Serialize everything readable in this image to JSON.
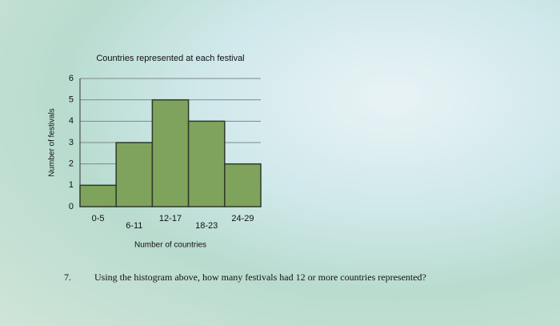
{
  "chart_data": {
    "type": "bar",
    "title": "Countries represented at each festival",
    "x_label": "Number of countries",
    "y_label": "Number of festivals",
    "categories": [
      "0-5",
      "6-11",
      "12-17",
      "18-23",
      "24-29"
    ],
    "values": [
      1,
      3,
      5,
      4,
      2
    ],
    "color": "#7fa35c",
    "ylim": [
      0,
      6
    ],
    "yticks": [
      0,
      1,
      2,
      3,
      4,
      5,
      6
    ],
    "grid": true
  },
  "question": {
    "number": "7.",
    "text": "Using the histogram above, how many festivals had 12 or more countries represented?"
  }
}
